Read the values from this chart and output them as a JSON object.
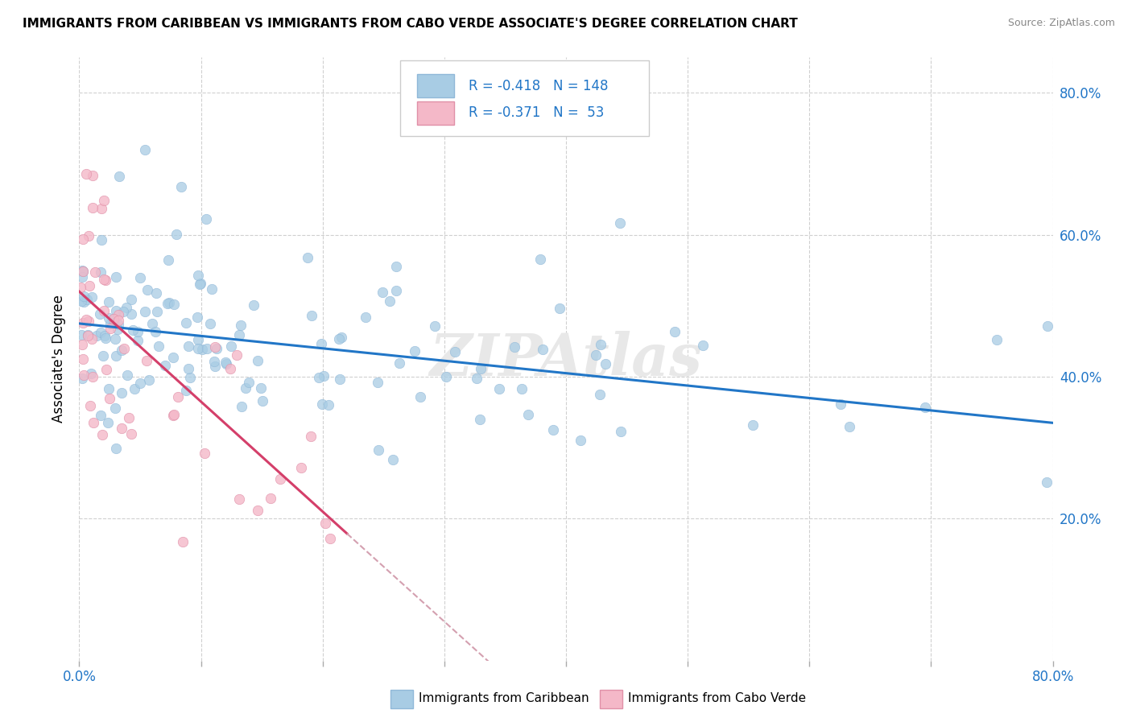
{
  "title": "IMMIGRANTS FROM CARIBBEAN VS IMMIGRANTS FROM CABO VERDE ASSOCIATE'S DEGREE CORRELATION CHART",
  "source": "Source: ZipAtlas.com",
  "ylabel": "Associate's Degree",
  "blue_color": "#a8cce4",
  "pink_color": "#f4b8c8",
  "blue_line_color": "#2176c7",
  "pink_line_color": "#d43f6a",
  "pink_dashed_color": "#d4a0b0",
  "text_color": "#2176c7",
  "legend_text_color": "#2176c7",
  "watermark_text": "ZIPAtlas",
  "watermark_color": "#e8e8e8",
  "legend_r1": "-0.418",
  "legend_n1": "148",
  "legend_r2": "-0.371",
  "legend_n2": "53",
  "xlim": [
    0.0,
    0.8
  ],
  "ylim": [
    0.0,
    0.85
  ],
  "xtick_labeled": [
    0.0,
    0.8
  ],
  "ytick_vals": [
    0.2,
    0.4,
    0.6,
    0.8
  ],
  "blue_intercept": 0.475,
  "blue_slope": -0.175,
  "pink_intercept": 0.52,
  "pink_slope": -1.55
}
